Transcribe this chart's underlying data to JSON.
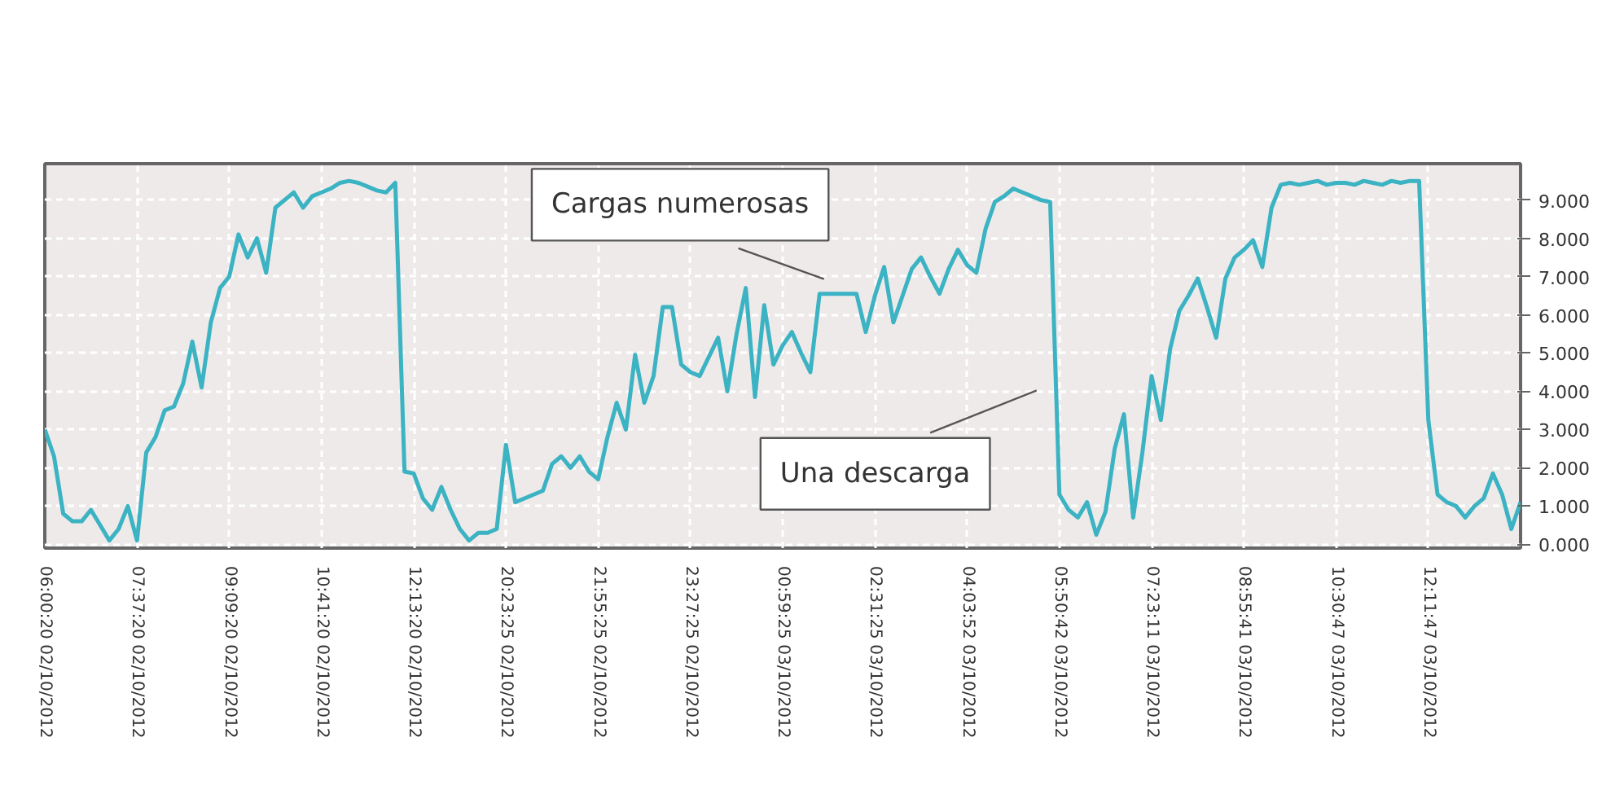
{
  "chart_data": {
    "type": "line",
    "color": "#3bb3c3",
    "grid": true,
    "marker": "none",
    "line_style": "solid",
    "ylim": [
      -0.1,
      9.95
    ],
    "yticks": [
      {
        "value": 0,
        "label": "0.000"
      },
      {
        "value": 1,
        "label": "1.000"
      },
      {
        "value": 2,
        "label": "2.000"
      },
      {
        "value": 3,
        "label": "3.000"
      },
      {
        "value": 4,
        "label": "4.000"
      },
      {
        "value": 5,
        "label": "5.000"
      },
      {
        "value": 6,
        "label": "6.000"
      },
      {
        "value": 7,
        "label": "7.000"
      },
      {
        "value": 8,
        "label": "8.000"
      },
      {
        "value": 9,
        "label": "9.000"
      }
    ],
    "categories": [
      "06:00:20 02/10/2012",
      null,
      null,
      null,
      null,
      null,
      null,
      null,
      null,
      null,
      "07:37:20 02/10/2012",
      null,
      null,
      null,
      null,
      null,
      null,
      null,
      null,
      null,
      "09:09:20 02/10/2012",
      null,
      null,
      null,
      null,
      null,
      null,
      null,
      null,
      null,
      "10:41:20 02/10/2012",
      null,
      null,
      null,
      null,
      null,
      null,
      null,
      null,
      null,
      "12:13:20 02/10/2012",
      null,
      null,
      null,
      null,
      null,
      null,
      null,
      null,
      null,
      "20:23:25 02/10/2012",
      null,
      null,
      null,
      null,
      null,
      null,
      null,
      null,
      null,
      "21:55:25 02/10/2012",
      null,
      null,
      null,
      null,
      null,
      null,
      null,
      null,
      null,
      "23:27:25 02/10/2012",
      null,
      null,
      null,
      null,
      null,
      null,
      null,
      null,
      null,
      "00:59:25 03/10/2012",
      null,
      null,
      null,
      null,
      null,
      null,
      null,
      null,
      null,
      "02:31:25 03/10/2012",
      null,
      null,
      null,
      null,
      null,
      null,
      null,
      null,
      null,
      "04:03:52 03/10/2012",
      null,
      null,
      null,
      null,
      null,
      null,
      null,
      null,
      null,
      "05:50:42 03/10/2012",
      null,
      null,
      null,
      null,
      null,
      null,
      null,
      null,
      null,
      "07:23:11 03/10/2012",
      null,
      null,
      null,
      null,
      null,
      null,
      null,
      null,
      null,
      "08:55:41 03/10/2012",
      null,
      null,
      null,
      null,
      null,
      null,
      null,
      null,
      null,
      "10:30:47 03/10/2012",
      null,
      null,
      null,
      null,
      null,
      null,
      null,
      null,
      null,
      "12:11:47 03/10/2012",
      null,
      null,
      null,
      null,
      null,
      null,
      null,
      null,
      null,
      null
    ],
    "values": [
      3.0,
      2.3,
      0.8,
      0.6,
      0.6,
      0.9,
      0.5,
      0.1,
      0.4,
      1.0,
      0.1,
      2.4,
      2.8,
      3.5,
      3.6,
      4.2,
      5.3,
      4.1,
      5.8,
      6.7,
      7.0,
      8.1,
      7.5,
      8.0,
      7.1,
      8.8,
      9.0,
      9.2,
      8.8,
      9.1,
      9.2,
      9.3,
      9.45,
      9.5,
      9.45,
      9.35,
      9.25,
      9.2,
      9.45,
      1.9,
      1.85,
      1.2,
      0.9,
      1.5,
      0.9,
      0.4,
      0.1,
      0.3,
      0.3,
      0.4,
      2.6,
      1.1,
      1.2,
      1.3,
      1.4,
      2.1,
      2.3,
      2.0,
      2.3,
      1.9,
      1.7,
      2.8,
      3.7,
      3.0,
      4.95,
      3.7,
      4.4,
      6.2,
      6.2,
      4.7,
      4.5,
      4.4,
      4.9,
      5.4,
      4.0,
      5.5,
      6.7,
      3.85,
      6.25,
      4.7,
      5.2,
      5.55,
      5.0,
      4.5,
      6.55,
      6.55,
      6.55,
      6.55,
      6.55,
      5.55,
      6.5,
      7.25,
      5.8,
      6.5,
      7.2,
      7.5,
      7.0,
      6.55,
      7.2,
      7.7,
      7.3,
      7.1,
      8.25,
      8.95,
      9.1,
      9.3,
      9.2,
      9.1,
      9.0,
      8.95,
      1.3,
      0.9,
      0.7,
      1.1,
      0.25,
      0.85,
      2.5,
      3.4,
      0.7,
      2.4,
      4.4,
      3.25,
      5.1,
      6.1,
      6.5,
      6.95,
      6.2,
      5.4,
      6.95,
      7.5,
      7.7,
      7.95,
      7.25,
      8.8,
      9.4,
      9.45,
      9.4,
      9.45,
      9.5,
      9.4,
      9.45,
      9.45,
      9.4,
      9.5,
      9.45,
      9.4,
      9.5,
      9.45,
      9.5,
      9.5,
      3.25,
      1.3,
      1.1,
      1.0,
      0.7,
      1.0,
      1.2,
      1.85,
      1.3,
      0.4,
      1.1
    ],
    "annotations": [
      "Cargas numerosas",
      "Una descarga"
    ]
  }
}
